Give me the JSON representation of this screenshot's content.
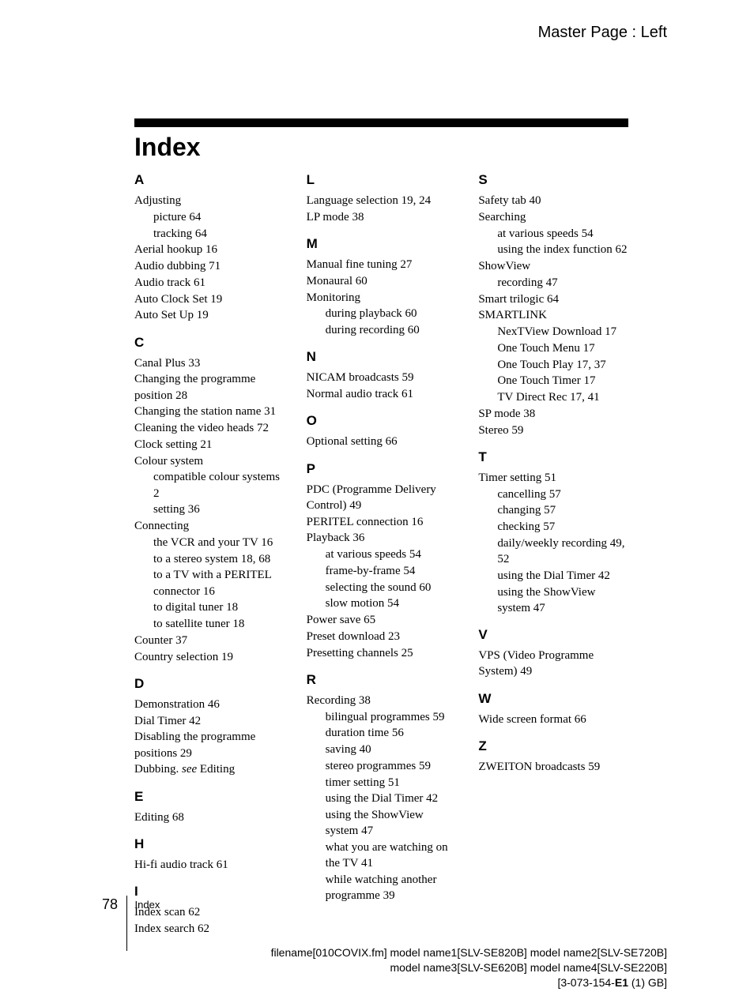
{
  "master_page": "Master Page : Left",
  "title": "Index",
  "page_number": "78",
  "footer_label": "Index",
  "meta_line1_a": "filename[010COVIX.fm]  model name1[SLV-SE820B]  model name2[SLV-SE720B]",
  "meta_line2_a": "model name3[SLV-SE620B]   model name4[SLV-SE220B]",
  "meta_line3_a": "[3-073-154-",
  "meta_line3_b": "E1",
  "meta_line3_c": " (1) GB]",
  "col1": {
    "A": {
      "letter": "A",
      "items": [
        {
          "t": "Adjusting",
          "sub": 0
        },
        {
          "t": "picture 64",
          "sub": 1
        },
        {
          "t": "tracking 64",
          "sub": 1
        },
        {
          "t": "Aerial hookup 16",
          "sub": 0
        },
        {
          "t": "Audio dubbing 71",
          "sub": 0
        },
        {
          "t": "Audio track 61",
          "sub": 0
        },
        {
          "t": "Auto Clock Set 19",
          "sub": 0
        },
        {
          "t": "Auto Set Up 19",
          "sub": 0
        }
      ]
    },
    "C": {
      "letter": "C",
      "items": [
        {
          "t": "Canal Plus 33",
          "sub": 0
        },
        {
          "t": "Changing the programme position 28",
          "sub": 0
        },
        {
          "t": "Changing the station name 31",
          "sub": 0
        },
        {
          "t": "Cleaning the video heads 72",
          "sub": 0
        },
        {
          "t": "Clock setting 21",
          "sub": 0
        },
        {
          "t": "Colour system",
          "sub": 0
        },
        {
          "t": "compatible colour systems 2",
          "sub": 1
        },
        {
          "t": "setting 36",
          "sub": 1
        },
        {
          "t": "Connecting",
          "sub": 0
        },
        {
          "t": "the VCR and your TV 16",
          "sub": 1
        },
        {
          "t": "to a stereo system 18, 68",
          "sub": 1
        },
        {
          "t": "to a TV with a PERITEL connector 16",
          "sub": 1
        },
        {
          "t": "to digital tuner 18",
          "sub": 1
        },
        {
          "t": "to satellite tuner 18",
          "sub": 1
        },
        {
          "t": "Counter 37",
          "sub": 0
        },
        {
          "t": "Country selection 19",
          "sub": 0
        }
      ]
    },
    "D": {
      "letter": "D",
      "items": [
        {
          "t": "Demonstration 46",
          "sub": 0
        },
        {
          "t": "Dial Timer 42",
          "sub": 0
        },
        {
          "t": "Disabling the programme positions 29",
          "sub": 0
        }
      ],
      "dubbing_a": "Dubbing. ",
      "dubbing_b": "see",
      "dubbing_c": " Editing"
    },
    "E": {
      "letter": "E",
      "items": [
        {
          "t": "Editing 68",
          "sub": 0
        }
      ]
    },
    "H": {
      "letter": "H",
      "items": [
        {
          "t": "Hi-fi audio track 61",
          "sub": 0
        }
      ]
    },
    "I": {
      "letter": "I",
      "items": [
        {
          "t": "Index scan 62",
          "sub": 0
        },
        {
          "t": "Index search 62",
          "sub": 0
        }
      ]
    }
  },
  "col2": {
    "L": {
      "letter": "L",
      "items": [
        {
          "t": "Language selection 19, 24",
          "sub": 0
        },
        {
          "t": "LP mode 38",
          "sub": 0
        }
      ]
    },
    "M": {
      "letter": "M",
      "items": [
        {
          "t": "Manual fine tuning 27",
          "sub": 0
        },
        {
          "t": "Monaural 60",
          "sub": 0
        },
        {
          "t": "Monitoring",
          "sub": 0
        },
        {
          "t": "during playback 60",
          "sub": 1
        },
        {
          "t": "during recording 60",
          "sub": 1
        }
      ]
    },
    "N": {
      "letter": "N",
      "items": [
        {
          "t": "NICAM broadcasts 59",
          "sub": 0
        },
        {
          "t": "Normal audio track 61",
          "sub": 0
        }
      ]
    },
    "O": {
      "letter": "O",
      "items": [
        {
          "t": "Optional setting 66",
          "sub": 0
        }
      ]
    },
    "P": {
      "letter": "P",
      "items": [
        {
          "t": "PDC (Programme Delivery Control) 49",
          "sub": 0
        },
        {
          "t": "PERITEL connection 16",
          "sub": 0
        },
        {
          "t": "Playback 36",
          "sub": 0
        },
        {
          "t": "at various speeds 54",
          "sub": 1
        },
        {
          "t": "frame-by-frame 54",
          "sub": 1
        },
        {
          "t": "selecting the sound 60",
          "sub": 1
        },
        {
          "t": "slow motion 54",
          "sub": 1
        },
        {
          "t": "Power save 65",
          "sub": 0
        },
        {
          "t": "Preset download 23",
          "sub": 0
        },
        {
          "t": "Presetting channels 25",
          "sub": 0
        }
      ]
    },
    "R": {
      "letter": "R",
      "items": [
        {
          "t": "Recording 38",
          "sub": 0
        },
        {
          "t": "bilingual programmes 59",
          "sub": 1
        },
        {
          "t": "duration time 56",
          "sub": 1
        },
        {
          "t": "saving 40",
          "sub": 1
        },
        {
          "t": "stereo programmes 59",
          "sub": 1
        },
        {
          "t": "timer setting 51",
          "sub": 1
        },
        {
          "t": "using the Dial Timer 42",
          "sub": 1
        },
        {
          "t": "using the ShowView system 47",
          "sub": 1
        },
        {
          "t": "what you are watching on the TV 41",
          "sub": 1
        },
        {
          "t": "while watching another programme 39",
          "sub": 1
        }
      ]
    }
  },
  "col3": {
    "S": {
      "letter": "S",
      "items": [
        {
          "t": "Safety tab 40",
          "sub": 0
        },
        {
          "t": "Searching",
          "sub": 0
        },
        {
          "t": "at various speeds 54",
          "sub": 1
        },
        {
          "t": "using the index function 62",
          "sub": 1
        },
        {
          "t": "ShowView",
          "sub": 0
        },
        {
          "t": "recording 47",
          "sub": 1
        },
        {
          "t": "Smart trilogic 64",
          "sub": 0
        },
        {
          "t": "SMARTLINK",
          "sub": 0
        },
        {
          "t": "NexTView Download 17",
          "sub": 1
        },
        {
          "t": "One Touch Menu 17",
          "sub": 1
        },
        {
          "t": "One Touch Play 17, 37",
          "sub": 1
        },
        {
          "t": "One Touch Timer 17",
          "sub": 1
        },
        {
          "t": "TV Direct Rec 17, 41",
          "sub": 1
        },
        {
          "t": "SP mode 38",
          "sub": 0
        },
        {
          "t": "Stereo 59",
          "sub": 0
        }
      ]
    },
    "T": {
      "letter": "T",
      "items": [
        {
          "t": "Timer setting 51",
          "sub": 0
        },
        {
          "t": "cancelling 57",
          "sub": 1
        },
        {
          "t": "changing 57",
          "sub": 1
        },
        {
          "t": "checking 57",
          "sub": 1
        },
        {
          "t": "daily/weekly recording 49, 52",
          "sub": 1
        },
        {
          "t": "using the Dial Timer 42",
          "sub": 1
        },
        {
          "t": "using the ShowView system 47",
          "sub": 1
        }
      ]
    },
    "V": {
      "letter": "V",
      "items": [
        {
          "t": "VPS (Video Programme System) 49",
          "sub": 0
        }
      ]
    },
    "W": {
      "letter": "W",
      "items": [
        {
          "t": "Wide screen format 66",
          "sub": 0
        }
      ]
    },
    "Z": {
      "letter": "Z",
      "items": [
        {
          "t": "ZWEITON broadcasts 59",
          "sub": 0
        }
      ]
    }
  }
}
